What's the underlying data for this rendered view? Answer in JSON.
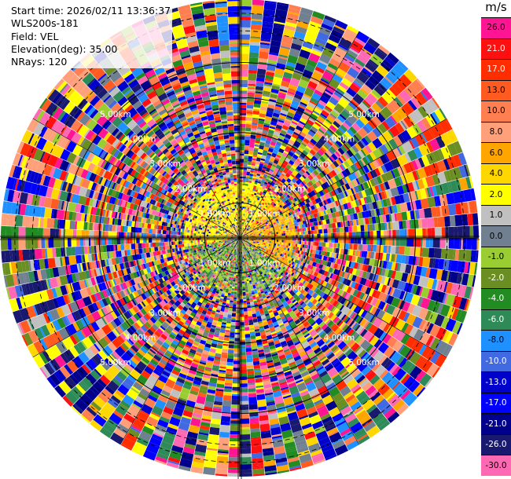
{
  "info": {
    "start_time": "Start time: 2026/02/11 13:36:37",
    "instrument": "WLS200s-181",
    "field": "Field: VEL",
    "elevation": "Elevation(deg): 35.00",
    "nrays": "NRays: 120"
  },
  "chart_data": {
    "type": "heatmap",
    "projection": "polar-ppi",
    "field": "VEL",
    "units": "m/s",
    "rays": 120,
    "elevation_deg": 35.0,
    "range_rings_km": [
      1.0,
      2.0,
      3.0,
      4.0,
      5.0
    ],
    "ring_labels": [
      "1.00km",
      "2.00km",
      "3.00km",
      "4.00km",
      "5.00km"
    ],
    "max_range_km": 6.8,
    "pattern_note_center": "near-zero velocities, grey/yellow in north-west quadrant, green in south",
    "colorbar": {
      "title": "m/s",
      "ticks": [
        "26.0",
        "21.0",
        "17.0",
        "13.0",
        "10.0",
        "8.0",
        "6.0",
        "4.0",
        "2.0",
        "1.0",
        "0.0",
        "-1.0",
        "-2.0",
        "-4.0",
        "-6.0",
        "-8.0",
        "-10.0",
        "-13.0",
        "-17.0",
        "-21.0",
        "-26.0",
        "-30.0"
      ],
      "colors": [
        "#ff1493",
        "#ff1010",
        "#ff2d00",
        "#ff5a1f",
        "#ff7f50",
        "#ffa07a",
        "#ffa500",
        "#ffd700",
        "#ffff00",
        "#c0c0c0",
        "#708090",
        "#9acd32",
        "#6b8e23",
        "#228b22",
        "#2e8b57",
        "#1e90ff",
        "#4169e1",
        "#0000cd",
        "#0000ff",
        "#00008b",
        "#191970",
        "#ff69b4"
      ]
    }
  }
}
